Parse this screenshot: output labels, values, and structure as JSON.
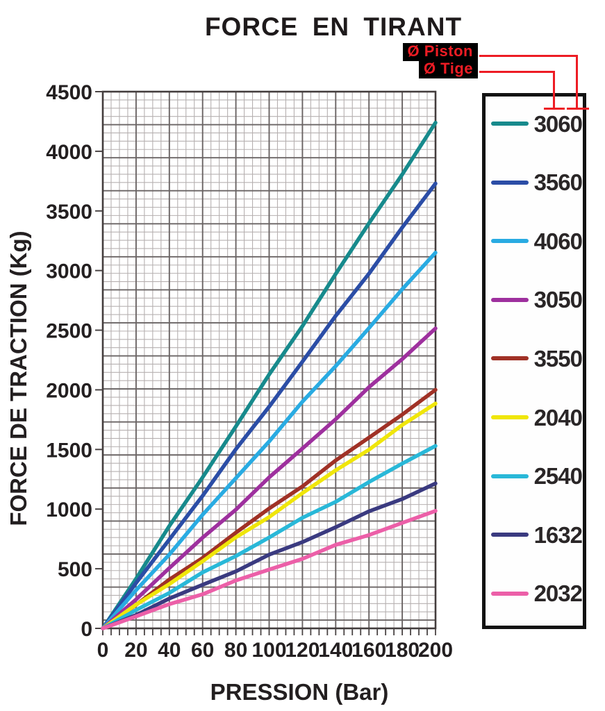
{
  "annotations": {
    "piston_label": "Ø Piston",
    "tige_label": "Ø Tige",
    "connector_color": "#ed1c24",
    "label_background": "#000000",
    "label_text_color": "#ed1c24"
  },
  "chart_data": {
    "type": "line",
    "title": "FORCE EN TIRANT",
    "xlabel": "PRESSION (Bar)",
    "ylabel": "FORCE DE TRACTION (Kg)",
    "xlim": [
      0,
      200
    ],
    "ylim": [
      0,
      4500
    ],
    "x_ticks": [
      0,
      20,
      40,
      60,
      80,
      100,
      120,
      140,
      160,
      180,
      200
    ],
    "y_ticks": [
      0,
      500,
      1000,
      1500,
      2000,
      2500,
      3000,
      3500,
      4000,
      4500
    ],
    "grid": true,
    "legend_position": "right",
    "x": [
      0,
      20,
      40,
      60,
      80,
      100,
      120,
      140,
      160,
      180,
      200
    ],
    "series": [
      {
        "name": "3060",
        "color": "#178a8c",
        "values": [
          0,
          424,
          848,
          1272,
          1696,
          2120,
          2544,
          2968,
          3392,
          3816,
          4240
        ]
      },
      {
        "name": "3560",
        "color": "#2b4da6",
        "values": [
          0,
          373,
          746,
          1119,
          1492,
          1865,
          2238,
          2611,
          2984,
          3357,
          3730
        ]
      },
      {
        "name": "4060",
        "color": "#29abe2",
        "values": [
          0,
          315,
          630,
          945,
          1260,
          1575,
          1890,
          2205,
          2520,
          2835,
          3150
        ]
      },
      {
        "name": "3050",
        "color": "#9e309e",
        "values": [
          0,
          252,
          503,
          755,
          1006,
          1258,
          1509,
          1761,
          2012,
          2264,
          2515
        ]
      },
      {
        "name": "3550",
        "color": "#a03126",
        "values": [
          0,
          200,
          400,
          600,
          800,
          1000,
          1200,
          1400,
          1600,
          1800,
          2000
        ]
      },
      {
        "name": "2040",
        "color": "#f0e60a",
        "values": [
          0,
          189,
          377,
          566,
          754,
          943,
          1131,
          1320,
          1508,
          1697,
          1885
        ]
      },
      {
        "name": "2540",
        "color": "#29b8d8",
        "values": [
          0,
          153,
          306,
          459,
          612,
          765,
          918,
          1071,
          1224,
          1377,
          1530
        ]
      },
      {
        "name": "1632",
        "color": "#3a3a80",
        "values": [
          0,
          122,
          243,
          365,
          486,
          608,
          729,
          851,
          972,
          1094,
          1215
        ]
      },
      {
        "name": "2032",
        "color": "#ec5fa8",
        "values": [
          0,
          99,
          197,
          296,
          394,
          493,
          591,
          690,
          788,
          887,
          985
        ]
      }
    ]
  }
}
